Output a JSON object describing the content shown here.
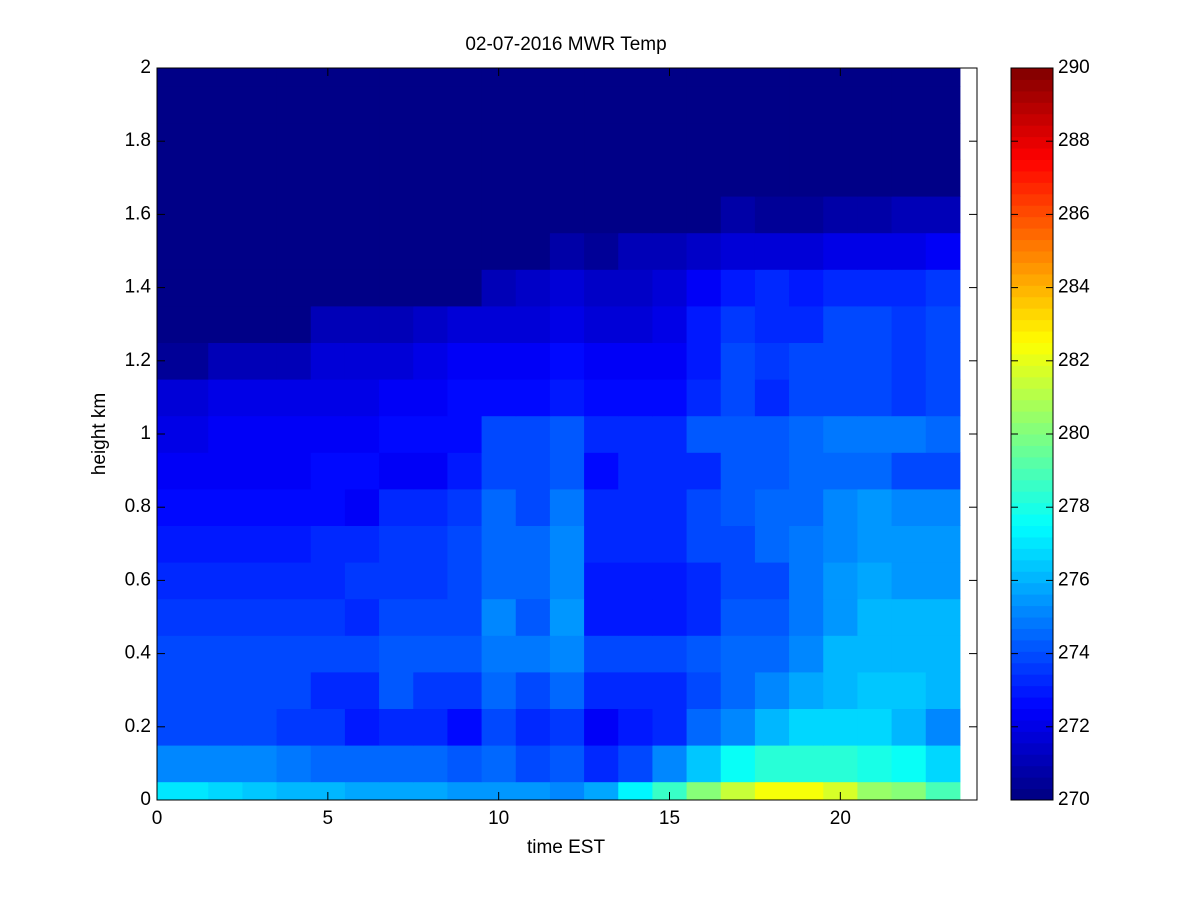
{
  "chart_data": {
    "type": "heatmap",
    "title": "02-07-2016 MWR Temp",
    "x_label": "time EST",
    "y_label": "height km",
    "colormap": "jet",
    "clim": [
      270,
      290
    ],
    "colorbar_ticks": [
      270,
      272,
      274,
      276,
      278,
      280,
      282,
      284,
      286,
      288,
      290
    ],
    "xlim": [
      0,
      24
    ],
    "xticks": [
      0,
      5,
      10,
      15,
      20
    ],
    "ylim": [
      0,
      2
    ],
    "yticks": [
      0,
      0.2,
      0.4,
      0.6,
      0.8,
      1,
      1.2,
      1.4,
      1.6,
      1.8,
      2
    ],
    "x_edges": [
      0,
      1.5,
      2.5,
      3.5,
      4.5,
      5.5,
      6.5,
      7.5,
      8.5,
      9.5,
      10.5,
      11.5,
      12.5,
      13.5,
      14.5,
      15.5,
      16.5,
      17.5,
      18.5,
      19.5,
      20.5,
      21.5,
      22.5,
      23.5
    ],
    "y_edges": [
      0,
      0.05,
      0.15,
      0.25,
      0.35,
      0.45,
      0.55,
      0.65,
      0.75,
      0.85,
      0.95,
      1.05,
      1.15,
      1.25,
      1.35,
      1.45,
      1.55,
      1.65,
      1.75,
      1.85,
      1.95,
      2.0
    ],
    "z": [
      [
        277,
        276.8,
        276.5,
        276.2,
        276,
        275.9,
        275.8,
        275.7,
        275.6,
        275.5,
        275.4,
        275.3,
        275.8,
        277.2,
        278.6,
        280,
        281.5,
        282.2,
        282.3,
        281.6,
        280.6,
        280,
        278.8
      ],
      [
        275.2,
        275.2,
        275,
        274.8,
        274.6,
        274.6,
        274.6,
        274.6,
        274.2,
        274.4,
        274,
        274.2,
        273.4,
        274,
        275,
        276.4,
        277.5,
        278.2,
        278.4,
        278.4,
        278,
        277.5,
        276.6
      ],
      [
        274,
        274,
        274,
        273.6,
        273.6,
        273,
        273.4,
        273.4,
        272.8,
        273.8,
        273.2,
        273.6,
        272.4,
        273,
        273.4,
        274.4,
        275,
        276.2,
        276.6,
        276.6,
        276.6,
        276,
        275
      ],
      [
        274,
        274,
        274,
        274,
        273.4,
        273.4,
        274.2,
        273.6,
        273.6,
        274.6,
        274,
        274.6,
        273.2,
        273.2,
        273.2,
        274,
        274.4,
        275.2,
        275.8,
        276.2,
        276.4,
        276.4,
        276
      ],
      [
        274,
        274,
        274,
        274,
        274,
        274,
        274.2,
        274.2,
        274.2,
        274.8,
        274.8,
        275,
        273.8,
        273.8,
        273.8,
        274.2,
        274.4,
        274.6,
        275.2,
        276,
        276.2,
        276.2,
        276
      ],
      [
        273.6,
        273.6,
        273.6,
        273.6,
        273.6,
        273.2,
        273.8,
        273.8,
        274,
        275,
        274.2,
        275.4,
        273,
        273,
        273,
        273.4,
        274.2,
        274.2,
        274.8,
        275.6,
        276,
        276,
        276
      ],
      [
        273.2,
        273.2,
        273.2,
        273.2,
        273.2,
        273.6,
        273.6,
        273.6,
        274,
        274.6,
        274.6,
        275,
        273,
        273,
        273,
        273.4,
        274,
        274,
        274.8,
        275.4,
        275.8,
        275.6,
        275.6
      ],
      [
        273,
        273,
        273,
        273,
        273.4,
        273.4,
        273.6,
        273.6,
        273.8,
        274.4,
        274.4,
        275,
        273.2,
        273.2,
        273.2,
        274,
        274,
        274.4,
        274.8,
        275,
        275.4,
        275.4,
        275.4
      ],
      [
        272.6,
        272.8,
        272.8,
        272.8,
        272.8,
        272.4,
        273.2,
        273.2,
        273.6,
        274.4,
        273.8,
        274.8,
        273.2,
        273.2,
        273.2,
        274,
        274.2,
        274.6,
        274.6,
        275,
        275.4,
        275.2,
        275.2
      ],
      [
        272.4,
        272.4,
        272.4,
        272.4,
        272.6,
        272.6,
        272.4,
        272.4,
        273,
        274,
        274,
        274.2,
        272.6,
        273.2,
        273.2,
        273.4,
        274.2,
        274.2,
        274.6,
        274.6,
        274.6,
        274,
        274
      ],
      [
        272,
        272.2,
        272.2,
        272.2,
        272.2,
        272.4,
        272.6,
        272.6,
        272.6,
        274,
        274,
        274.2,
        273.2,
        273.2,
        273.2,
        274.2,
        274.2,
        274.2,
        274.6,
        274.8,
        274.8,
        274.8,
        274.4
      ],
      [
        271.6,
        272,
        272,
        272,
        272,
        272,
        272.4,
        272.4,
        272.8,
        272.8,
        272.8,
        273,
        272.6,
        272.8,
        272.8,
        273.4,
        273.8,
        273.4,
        273.8,
        274,
        274,
        273.6,
        274
      ],
      [
        270.6,
        271,
        271,
        271,
        271.6,
        271.6,
        271.8,
        272,
        272.2,
        272.4,
        272.4,
        272.6,
        272.4,
        272.4,
        272.4,
        273,
        273.8,
        273.6,
        273.8,
        274,
        274,
        273.6,
        274
      ],
      [
        270.3,
        270.3,
        270.3,
        270.3,
        271,
        271,
        271,
        271.4,
        271.6,
        271.8,
        271.8,
        272,
        271.6,
        271.6,
        272,
        273,
        273.6,
        273.2,
        273.4,
        274,
        274,
        273.6,
        274
      ],
      [
        270.3,
        270.3,
        270.3,
        270.3,
        270.3,
        270.3,
        270.3,
        270.3,
        270.3,
        271.2,
        271.4,
        271.8,
        271.4,
        271.4,
        271.6,
        272.4,
        273,
        273.2,
        273,
        273.4,
        273.2,
        273.2,
        273.6
      ],
      [
        270.3,
        270.3,
        270.3,
        270.3,
        270.3,
        270.3,
        270.3,
        270.3,
        270.3,
        270.3,
        270.3,
        270.8,
        270.5,
        271,
        271,
        271.4,
        271.6,
        271.8,
        271.8,
        272,
        272,
        272,
        272.4
      ],
      [
        270.3,
        270.3,
        270.3,
        270.3,
        270.3,
        270.3,
        270.3,
        270.3,
        270.3,
        270.3,
        270.3,
        270.3,
        270.3,
        270.3,
        270.3,
        270.3,
        270.8,
        270.5,
        270.5,
        270.8,
        270.8,
        271,
        271.2
      ],
      [
        270.3,
        270.3,
        270.3,
        270.3,
        270.3,
        270.3,
        270.3,
        270.3,
        270.3,
        270.3,
        270.3,
        270.3,
        270.3,
        270.3,
        270.3,
        270.3,
        270.3,
        270.3,
        270.3,
        270.3,
        270.3,
        270.3,
        270.3
      ],
      [
        270.3,
        270.3,
        270.3,
        270.3,
        270.3,
        270.3,
        270.3,
        270.3,
        270.3,
        270.3,
        270.3,
        270.3,
        270.3,
        270.3,
        270.3,
        270.3,
        270.3,
        270.3,
        270.3,
        270.3,
        270.3,
        270.3,
        270.3
      ],
      [
        270.3,
        270.3,
        270.3,
        270.3,
        270.3,
        270.3,
        270.3,
        270.3,
        270.3,
        270.3,
        270.3,
        270.3,
        270.3,
        270.3,
        270.3,
        270.3,
        270.3,
        270.3,
        270.3,
        270.3,
        270.3,
        270.3,
        270.3
      ],
      [
        270.3,
        270.3,
        270.3,
        270.3,
        270.3,
        270.3,
        270.3,
        270.3,
        270.3,
        270.3,
        270.3,
        270.3,
        270.3,
        270.3,
        270.3,
        270.3,
        270.3,
        270.3,
        270.3,
        270.3,
        270.3,
        270.3,
        270.3
      ]
    ]
  }
}
